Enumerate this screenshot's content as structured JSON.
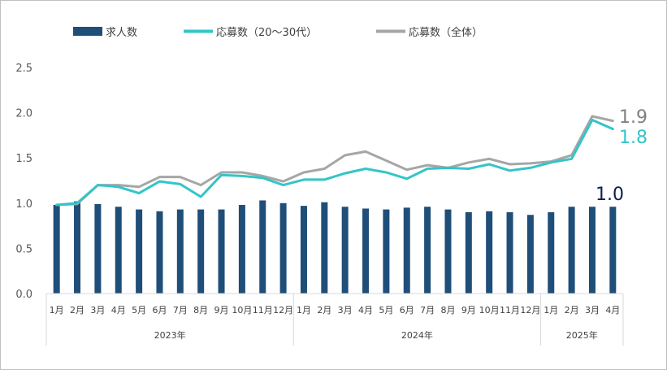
{
  "chart_data": {
    "type": "bar+line",
    "title": "",
    "xlabel": "",
    "ylabel": "",
    "ylim": [
      0,
      2.5
    ],
    "yticks": [
      "0.0",
      "0.5",
      "1.0",
      "1.5",
      "2.0",
      "2.5"
    ],
    "grid": false,
    "legend_position": "top",
    "categories": [
      "1月",
      "2月",
      "3月",
      "4月",
      "5月",
      "6月",
      "7月",
      "8月",
      "9月",
      "10月",
      "11月",
      "12月",
      "1月",
      "2月",
      "3月",
      "4月",
      "5月",
      "6月",
      "7月",
      "8月",
      "9月",
      "10月",
      "11月",
      "12月",
      "1月",
      "2月",
      "3月",
      "4月"
    ],
    "year_groups": [
      {
        "label": "2023年",
        "count": 12
      },
      {
        "label": "2024年",
        "count": 12
      },
      {
        "label": "2025年",
        "count": 4
      }
    ],
    "series": [
      {
        "name": "求人数",
        "kind": "bar",
        "color": "#1f4e79",
        "values": [
          0.98,
          1.02,
          0.99,
          0.96,
          0.93,
          0.91,
          0.93,
          0.93,
          0.93,
          0.98,
          1.03,
          1.0,
          0.97,
          1.01,
          0.96,
          0.94,
          0.93,
          0.95,
          0.96,
          0.93,
          0.9,
          0.91,
          0.9,
          0.87,
          0.9,
          0.96,
          0.96,
          0.96
        ],
        "end_label": "1.0",
        "end_label_color": "#0d1f4f"
      },
      {
        "name": "応募数（20～30代）",
        "kind": "line",
        "color": "#33c5c8",
        "values": [
          0.98,
          1.0,
          1.2,
          1.18,
          1.11,
          1.24,
          1.21,
          1.07,
          1.31,
          1.3,
          1.28,
          1.2,
          1.26,
          1.26,
          1.33,
          1.38,
          1.34,
          1.27,
          1.38,
          1.39,
          1.38,
          1.43,
          1.36,
          1.39,
          1.45,
          1.49,
          1.92,
          1.82
        ],
        "end_label": "1.8",
        "end_label_color": "#33c5c8"
      },
      {
        "name": "応募数（全体）",
        "kind": "line",
        "color": "#a6a6a6",
        "values": [
          0.98,
          0.99,
          1.2,
          1.2,
          1.18,
          1.29,
          1.29,
          1.2,
          1.34,
          1.34,
          1.3,
          1.24,
          1.34,
          1.38,
          1.53,
          1.57,
          1.47,
          1.37,
          1.42,
          1.39,
          1.45,
          1.49,
          1.43,
          1.44,
          1.46,
          1.53,
          1.96,
          1.91
        ],
        "end_label": "1.9",
        "end_label_color": "#808080"
      }
    ]
  }
}
